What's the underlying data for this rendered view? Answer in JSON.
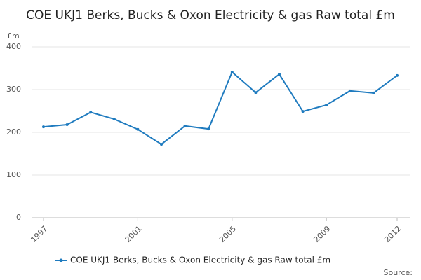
{
  "chart_data": {
    "type": "line",
    "title": "COE UKJ1 Berks, Bucks & Oxon Electricity & gas Raw total £m",
    "y_label": "£m",
    "source": "Source:",
    "x": [
      1997,
      1998,
      1999,
      2000,
      2001,
      2002,
      2003,
      2004,
      2005,
      2006,
      2007,
      2008,
      2009,
      2010,
      2011,
      2012
    ],
    "series": [
      {
        "name": "COE UKJ1 Berks, Bucks & Oxon Electricity & gas Raw total £m",
        "color": "#1f7bbf",
        "values": [
          213,
          218,
          247,
          231,
          207,
          172,
          215,
          208,
          341,
          293,
          336,
          249,
          264,
          297,
          292,
          333
        ]
      }
    ],
    "xlim": [
      1997,
      2012
    ],
    "xticks": [
      1997,
      2001,
      2005,
      2009,
      2012
    ],
    "ylim": [
      0,
      400
    ],
    "yticks": [
      0,
      100,
      200,
      300,
      400
    ],
    "grid": true
  }
}
